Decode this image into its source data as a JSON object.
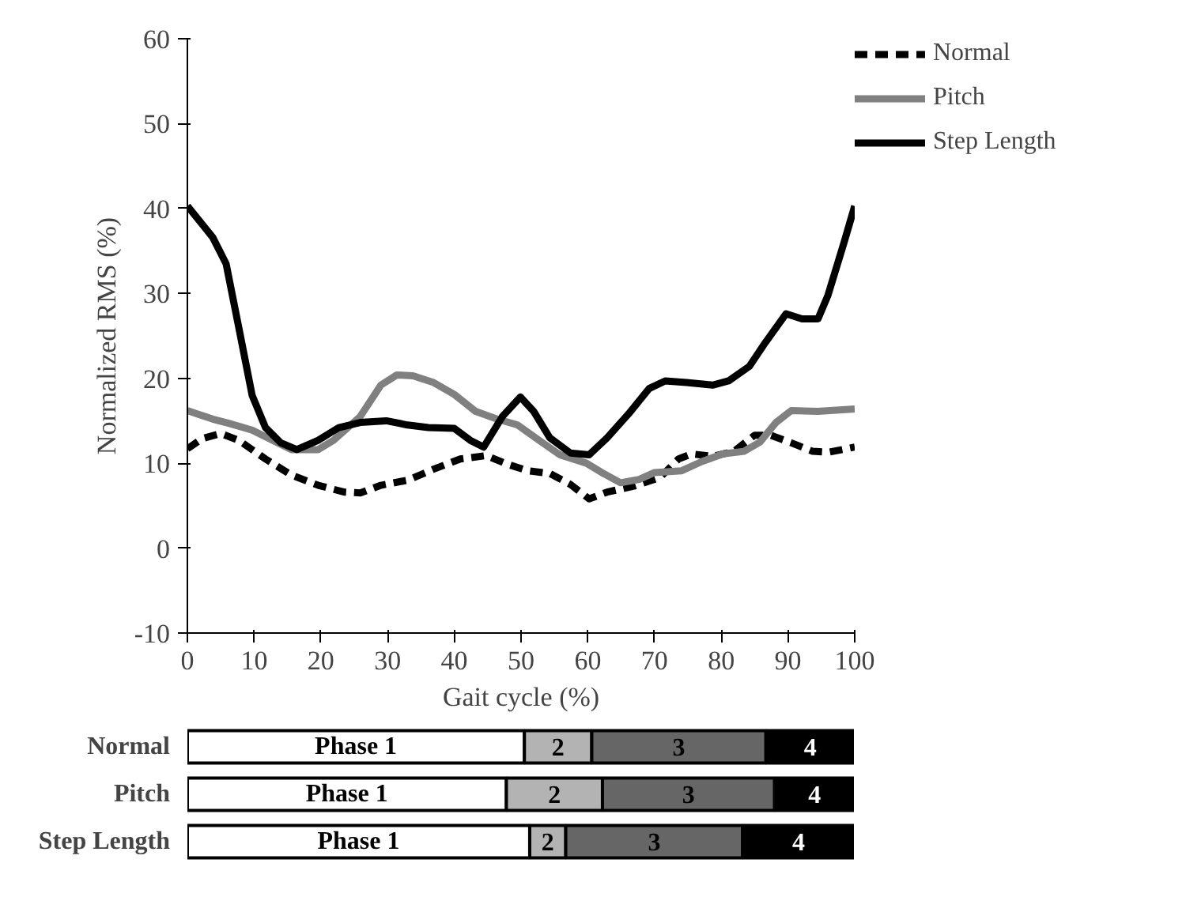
{
  "chart_data": [
    {
      "type": "line",
      "xlabel": "Gait cycle (%)",
      "ylabel": "Normalized RMS (%)",
      "xlim": [
        0,
        100
      ],
      "ylim": [
        -10,
        60
      ],
      "xticks": [
        0,
        10,
        20,
        30,
        40,
        50,
        60,
        70,
        80,
        90,
        100
      ],
      "yticks": [
        -10,
        0,
        10,
        20,
        30,
        40,
        50,
        60
      ],
      "grid": false,
      "legend": "top right",
      "marker": "none",
      "series": [
        {
          "name": "Normal",
          "color": "#000000",
          "line_style": "dashed",
          "x": [
            0,
            2.2,
            5,
            7.7,
            11.7,
            15.6,
            19.6,
            23.5,
            25.9,
            29,
            33,
            36.9,
            40.9,
            44.8,
            47.9,
            51.1,
            54.3,
            57.4,
            60.2,
            62.9,
            66.9,
            70.8,
            73.6,
            75.6,
            78.7,
            81.9,
            85,
            87.4,
            90.5,
            93.7,
            96.1,
            100
          ],
          "values": [
            11.7,
            12.9,
            13.5,
            12.7,
            10.5,
            8.6,
            7.4,
            6.6,
            6.5,
            7.4,
            8,
            9.3,
            10.5,
            10.9,
            9.9,
            9.1,
            8.8,
            7.5,
            5.8,
            6.6,
            7.3,
            8.3,
            10.5,
            11.1,
            10.8,
            11.4,
            13.3,
            13.3,
            12.4,
            11.4,
            11.3,
            11.9
          ]
        },
        {
          "name": "Pitch",
          "color": "#808080",
          "line_style": "solid",
          "x": [
            0,
            3.8,
            6.2,
            9.7,
            12.5,
            15.6,
            19.6,
            21.9,
            25.9,
            29,
            31.4,
            33.8,
            36.9,
            40,
            43.2,
            46.4,
            49.5,
            52.7,
            55.8,
            59.8,
            62.1,
            64.9,
            67.7,
            70,
            74,
            77.1,
            80.3,
            83.4,
            85.8,
            88.2,
            90.5,
            94.5,
            100
          ],
          "values": [
            16.2,
            15.2,
            14.7,
            13.9,
            12.8,
            11.6,
            11.6,
            12.7,
            15.5,
            19.2,
            20.4,
            20.3,
            19.5,
            18.1,
            16.1,
            15.2,
            14.5,
            12.7,
            11,
            10,
            8.9,
            7.7,
            8.1,
            8.9,
            9.1,
            10.2,
            11.1,
            11.4,
            12.5,
            14.8,
            16.2,
            16.1,
            16.4
          ]
        },
        {
          "name": "Step Length",
          "color": "#000000",
          "line_style": "solid",
          "x": [
            0,
            3.8,
            5.8,
            7.7,
            9.7,
            11.7,
            14,
            16.4,
            19.6,
            22.7,
            25.9,
            29.8,
            33,
            36.1,
            40,
            42.4,
            44.4,
            47.2,
            49.9,
            51.9,
            54.3,
            57.4,
            60.2,
            62.9,
            66.1,
            69.2,
            71.6,
            74.8,
            78.7,
            81.1,
            84.2,
            86.6,
            89.7,
            92.1,
            94.5,
            96,
            98.4,
            100
          ],
          "values": [
            40.3,
            36.6,
            33.5,
            26,
            18,
            14.2,
            12.4,
            11.6,
            12.7,
            14.2,
            14.8,
            15,
            14.5,
            14.2,
            14.1,
            12.7,
            11.9,
            15.5,
            17.8,
            16.1,
            13,
            11.2,
            11,
            13,
            15.8,
            18.8,
            19.7,
            19.5,
            19.2,
            19.7,
            21.4,
            24.2,
            27.6,
            27,
            27,
            29.8,
            36,
            40.3
          ]
        }
      ]
    },
    {
      "type": "bar",
      "orientation": "horizontal",
      "stacked": true,
      "xlim": [
        0,
        100
      ],
      "tick_labels": false,
      "categories": [
        "Normal",
        "Pitch",
        "Step Length"
      ],
      "series": [
        {
          "name": "Phase 1",
          "color": "#ffffff",
          "values": [
            50.5,
            47.8,
            51.3
          ]
        },
        {
          "name": "2",
          "color": "#b3b3b3",
          "values": [
            10.1,
            14.4,
            5.4
          ]
        },
        {
          "name": "3",
          "color": "#666666",
          "values": [
            26.1,
            25.8,
            26.5
          ]
        },
        {
          "name": "4",
          "color": "#000000",
          "values": [
            13.3,
            12.0,
            16.8
          ]
        }
      ]
    }
  ]
}
